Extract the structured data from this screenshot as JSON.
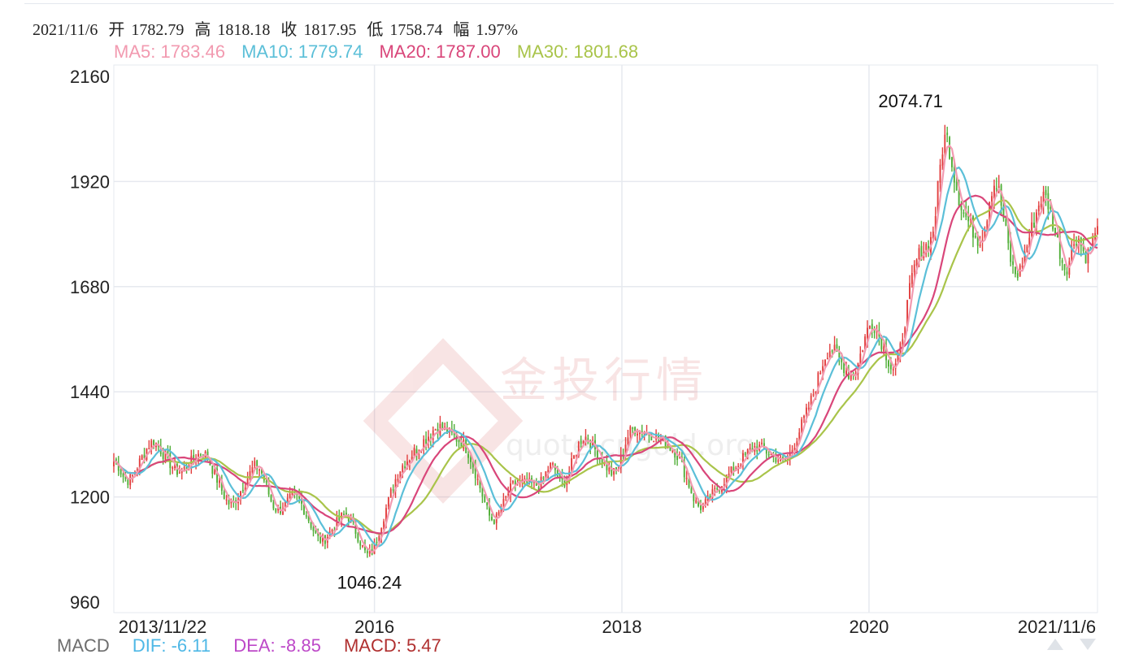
{
  "ohlc": {
    "date": "2021/11/6",
    "open_label": "开",
    "open": "1782.79",
    "high_label": "高",
    "high": "1818.18",
    "close_label": "收",
    "close": "1817.95",
    "low_label": "低",
    "low": "1758.74",
    "change_label": "幅",
    "change": "1.97%"
  },
  "ma_legend": {
    "ma5": "MA5: 1783.46",
    "ma10": "MA10: 1779.74",
    "ma20": "MA20: 1787.00",
    "ma30": "MA30: 1801.68"
  },
  "macd_legend": {
    "title": "MACD",
    "dif": "DIF: -6.11",
    "dea": "DEA: -8.85",
    "macd": "MACD: 5.47"
  },
  "watermark": {
    "brand": "金投行情",
    "url": "quote.cngold.org"
  },
  "colors": {
    "up": "#e23e3e",
    "down": "#4fae36",
    "ma5": "#f29ab0",
    "ma10": "#5bbfd8",
    "ma20": "#d9467a",
    "ma30": "#a9c44a",
    "dif": "#4fb8e6",
    "dea": "#bd48c8",
    "macd": "#b03030",
    "grid": "#e6e9ef"
  },
  "chart_data": {
    "type": "candlestick",
    "title": "",
    "x_ticks": [
      "2013/11/22",
      "2016",
      "2018",
      "2020",
      "2021/11/6"
    ],
    "y_ticks": [
      960,
      1200,
      1440,
      1680,
      1920,
      2160
    ],
    "ylim": [
      960,
      2160
    ],
    "annotations": {
      "max": "2074.71",
      "min": "1046.24"
    },
    "grid": true,
    "series_names": [
      "MA5",
      "MA10",
      "MA20",
      "MA30"
    ],
    "price_path": [
      [
        "2013-11-22",
        1295
      ],
      [
        "2014-01-01",
        1225
      ],
      [
        "2014-03-15",
        1335
      ],
      [
        "2014-06-01",
        1250
      ],
      [
        "2014-08-15",
        1310
      ],
      [
        "2014-11-01",
        1170
      ],
      [
        "2015-01-20",
        1285
      ],
      [
        "2015-03-15",
        1160
      ],
      [
        "2015-05-15",
        1210
      ],
      [
        "2015-07-25",
        1090
      ],
      [
        "2015-10-10",
        1170
      ],
      [
        "2015-12-17",
        1050
      ],
      [
        "2016-03-10",
        1260
      ],
      [
        "2016-07-06",
        1365
      ],
      [
        "2016-10-01",
        1315
      ],
      [
        "2016-12-15",
        1130
      ],
      [
        "2017-02-15",
        1235
      ],
      [
        "2017-05-10",
        1225
      ],
      [
        "2017-06-05",
        1290
      ],
      [
        "2017-07-10",
        1215
      ],
      [
        "2017-09-08",
        1350
      ],
      [
        "2017-12-12",
        1240
      ],
      [
        "2018-01-25",
        1360
      ],
      [
        "2018-04-10",
        1340
      ],
      [
        "2018-06-15",
        1300
      ],
      [
        "2018-08-16",
        1165
      ],
      [
        "2018-10-15",
        1225
      ],
      [
        "2019-01-30",
        1320
      ],
      [
        "2019-05-01",
        1275
      ],
      [
        "2019-07-15",
        1420
      ],
      [
        "2019-09-04",
        1552
      ],
      [
        "2019-11-15",
        1465
      ],
      [
        "2020-01-08",
        1615
      ],
      [
        "2020-03-19",
        1470
      ],
      [
        "2020-05-15",
        1740
      ],
      [
        "2020-07-15",
        1800
      ],
      [
        "2020-08-07",
        2074.71
      ],
      [
        "2020-09-25",
        1865
      ],
      [
        "2020-11-30",
        1770
      ],
      [
        "2021-01-06",
        1955
      ],
      [
        "2021-03-08",
        1680
      ],
      [
        "2021-06-01",
        1910
      ],
      [
        "2021-08-09",
        1690
      ],
      [
        "2021-09-03",
        1835
      ],
      [
        "2021-09-30",
        1725
      ],
      [
        "2021-11-06",
        1817.95
      ]
    ]
  }
}
